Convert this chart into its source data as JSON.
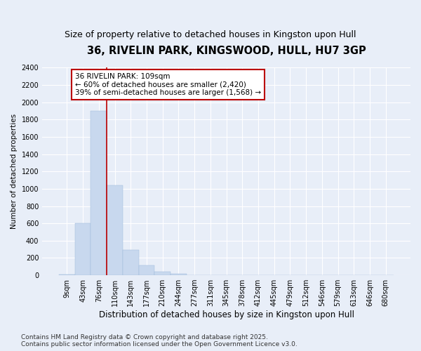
{
  "title": "36, RIVELIN PARK, KINGSWOOD, HULL, HU7 3GP",
  "subtitle": "Size of property relative to detached houses in Kingston upon Hull",
  "xlabel": "Distribution of detached houses by size in Kingston upon Hull",
  "ylabel": "Number of detached properties",
  "categories": [
    "9sqm",
    "43sqm",
    "76sqm",
    "110sqm",
    "143sqm",
    "177sqm",
    "210sqm",
    "244sqm",
    "277sqm",
    "311sqm",
    "345sqm",
    "378sqm",
    "412sqm",
    "445sqm",
    "479sqm",
    "512sqm",
    "546sqm",
    "579sqm",
    "613sqm",
    "646sqm",
    "680sqm"
  ],
  "values": [
    10,
    600,
    1900,
    1040,
    290,
    115,
    40,
    20,
    0,
    0,
    0,
    0,
    0,
    0,
    0,
    0,
    0,
    0,
    0,
    0,
    0
  ],
  "bar_color": "#c8d8ee",
  "bar_edgecolor": "#9ab8d8",
  "vline_color": "#bb0000",
  "vline_x": 2.5,
  "annotation_text": "36 RIVELIN PARK: 109sqm\n← 60% of detached houses are smaller (2,420)\n39% of semi-detached houses are larger (1,568) →",
  "annotation_box_facecolor": "#ffffff",
  "annotation_box_edgecolor": "#bb0000",
  "ylim": [
    0,
    2400
  ],
  "yticks": [
    0,
    200,
    400,
    600,
    800,
    1000,
    1200,
    1400,
    1600,
    1800,
    2000,
    2200,
    2400
  ],
  "background_color": "#e8eef8",
  "grid_color": "#ffffff",
  "footer_line1": "Contains HM Land Registry data © Crown copyright and database right 2025.",
  "footer_line2": "Contains public sector information licensed under the Open Government Licence v3.0.",
  "title_fontsize": 10.5,
  "subtitle_fontsize": 9,
  "xlabel_fontsize": 8.5,
  "ylabel_fontsize": 7.5,
  "tick_fontsize": 7,
  "annot_fontsize": 7.5,
  "footer_fontsize": 6.5
}
